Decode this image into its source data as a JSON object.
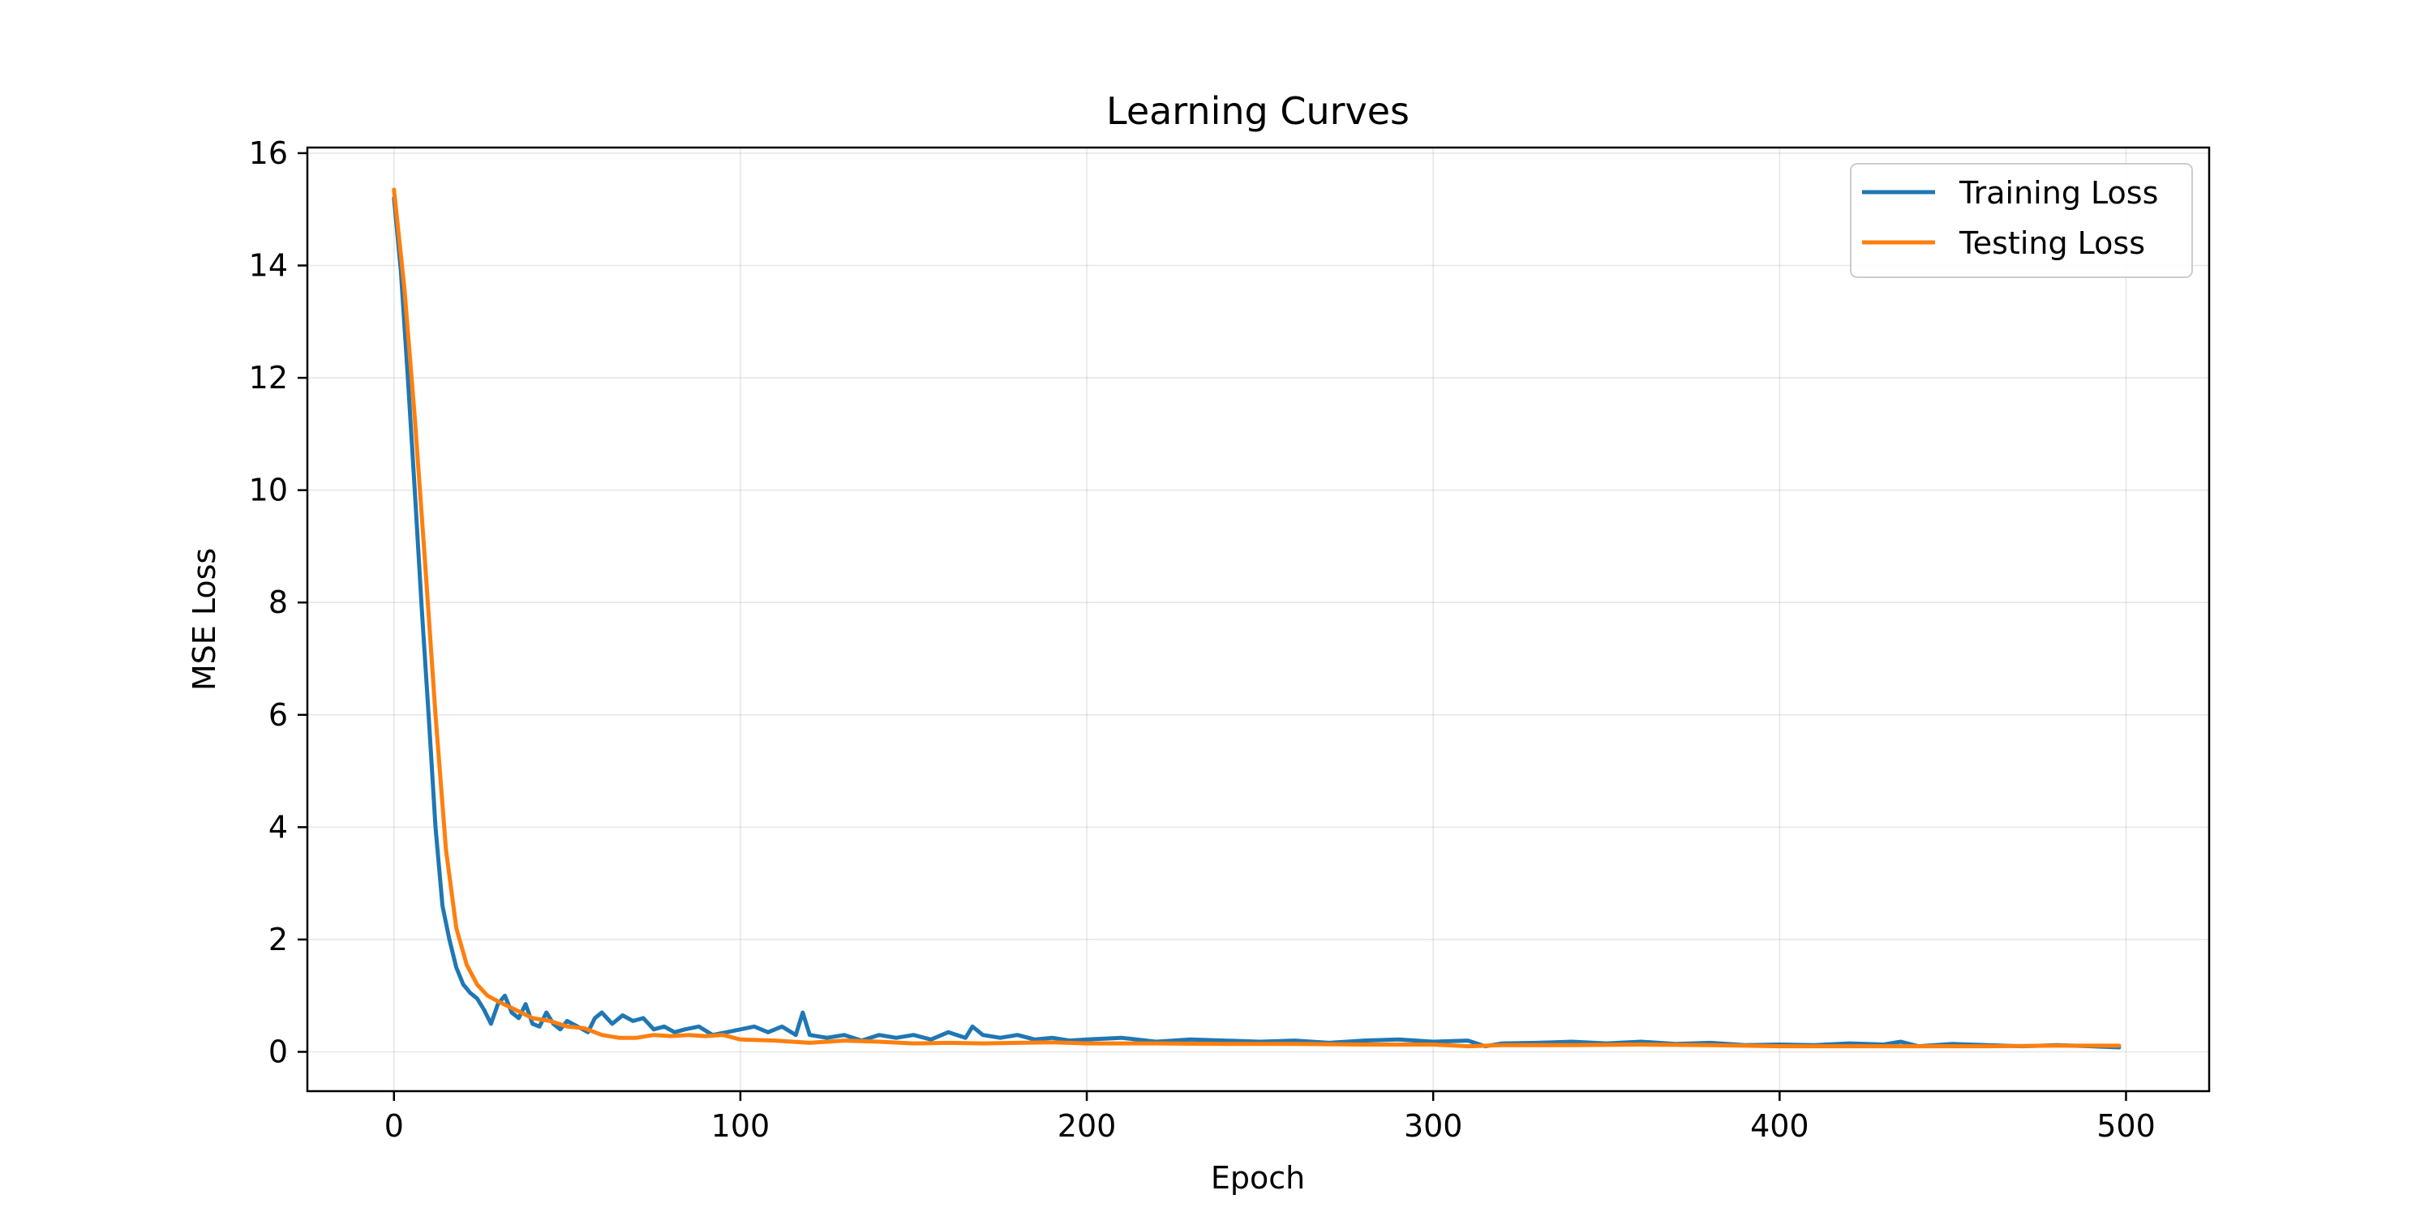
{
  "chart_data": {
    "type": "line",
    "title": "Learning Curves",
    "xlabel": "Epoch",
    "ylabel": "MSE Loss",
    "xlim": [
      -25,
      524
    ],
    "ylim": [
      -0.7,
      16.1
    ],
    "xticks": [
      0,
      100,
      200,
      300,
      400,
      500
    ],
    "yticks": [
      0,
      2,
      4,
      6,
      8,
      10,
      12,
      14,
      16
    ],
    "grid": true,
    "legend": {
      "position": "top-right"
    },
    "series": [
      {
        "name": "Training Loss",
        "color": "#1f77b4",
        "x": [
          0,
          2,
          4,
          6,
          8,
          10,
          12,
          14,
          16,
          18,
          20,
          22,
          24,
          26,
          28,
          30,
          32,
          34,
          36,
          38,
          40,
          42,
          44,
          46,
          48,
          50,
          53,
          56,
          58,
          60,
          63,
          66,
          69,
          72,
          75,
          78,
          81,
          84,
          88,
          92,
          96,
          100,
          104,
          108,
          112,
          116,
          118,
          120,
          125,
          130,
          135,
          140,
          145,
          150,
          155,
          160,
          165,
          167,
          170,
          175,
          180,
          185,
          190,
          195,
          200,
          210,
          220,
          230,
          240,
          250,
          260,
          270,
          280,
          290,
          300,
          310,
          315,
          320,
          330,
          340,
          350,
          360,
          370,
          380,
          390,
          400,
          410,
          420,
          430,
          435,
          440,
          450,
          460,
          470,
          480,
          490,
          498
        ],
        "values": [
          15.2,
          13.9,
          12.0,
          10.0,
          7.9,
          6.0,
          4.0,
          2.6,
          2.0,
          1.5,
          1.2,
          1.05,
          0.95,
          0.75,
          0.5,
          0.85,
          1.0,
          0.7,
          0.6,
          0.85,
          0.5,
          0.45,
          0.7,
          0.5,
          0.4,
          0.55,
          0.45,
          0.35,
          0.6,
          0.7,
          0.5,
          0.65,
          0.55,
          0.6,
          0.4,
          0.45,
          0.35,
          0.4,
          0.45,
          0.3,
          0.35,
          0.4,
          0.45,
          0.35,
          0.45,
          0.3,
          0.7,
          0.3,
          0.25,
          0.3,
          0.2,
          0.3,
          0.25,
          0.3,
          0.22,
          0.35,
          0.25,
          0.45,
          0.3,
          0.25,
          0.3,
          0.22,
          0.25,
          0.2,
          0.22,
          0.25,
          0.18,
          0.22,
          0.2,
          0.18,
          0.2,
          0.16,
          0.2,
          0.22,
          0.18,
          0.2,
          0.1,
          0.15,
          0.16,
          0.18,
          0.15,
          0.18,
          0.14,
          0.16,
          0.12,
          0.13,
          0.12,
          0.15,
          0.13,
          0.18,
          0.1,
          0.14,
          0.12,
          0.1,
          0.12,
          0.1,
          0.08
        ]
      },
      {
        "name": "Testing Loss",
        "color": "#ff7f0e",
        "x": [
          0,
          3,
          6,
          9,
          12,
          15,
          18,
          21,
          24,
          27,
          30,
          35,
          40,
          45,
          50,
          55,
          60,
          65,
          70,
          75,
          80,
          85,
          90,
          95,
          100,
          110,
          120,
          130,
          140,
          150,
          160,
          170,
          180,
          190,
          200,
          220,
          240,
          260,
          280,
          300,
          310,
          320,
          340,
          360,
          380,
          400,
          420,
          440,
          460,
          480,
          498
        ],
        "values": [
          15.35,
          13.6,
          11.3,
          8.7,
          6.0,
          3.6,
          2.2,
          1.55,
          1.2,
          1.0,
          0.9,
          0.75,
          0.6,
          0.55,
          0.45,
          0.42,
          0.3,
          0.25,
          0.25,
          0.3,
          0.28,
          0.3,
          0.28,
          0.3,
          0.22,
          0.2,
          0.16,
          0.2,
          0.18,
          0.15,
          0.16,
          0.15,
          0.16,
          0.17,
          0.15,
          0.15,
          0.14,
          0.14,
          0.13,
          0.13,
          0.1,
          0.12,
          0.12,
          0.13,
          0.12,
          0.1,
          0.1,
          0.1,
          0.1,
          0.11,
          0.11
        ]
      }
    ]
  }
}
